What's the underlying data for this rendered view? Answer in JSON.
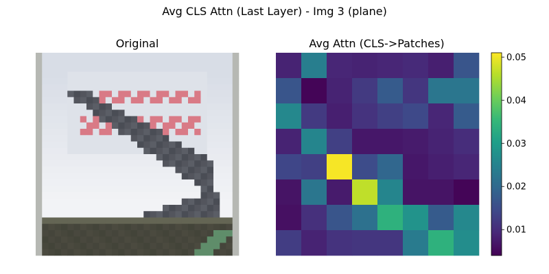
{
  "figure": {
    "suptitle": "Avg CLS Attn (Last Layer) - Img 3 (plane)"
  },
  "chart_data": [
    {
      "type": "image",
      "title": "Original",
      "axis": "off",
      "description_of_content": "low-resolution 32x32 photo: airplane on a sign/billboard with red lettering",
      "colors": {
        "sky": "#d8dde6",
        "sign_text": "#d97a86",
        "plane": "#4a4d55",
        "ground": "#4b4a3f",
        "frame": "#b6b8b3"
      }
    },
    {
      "type": "heatmap",
      "title": "Avg Attn (CLS->Patches)",
      "axis": "off",
      "colormap": "viridis",
      "rows": 8,
      "cols": 8,
      "values": [
        [
          0.0085,
          0.024,
          0.009,
          0.0085,
          0.009,
          0.0095,
          0.008,
          0.0165
        ],
        [
          0.0165,
          0.0045,
          0.0085,
          0.012,
          0.0175,
          0.0115,
          0.0225,
          0.0225
        ],
        [
          0.026,
          0.012,
          0.008,
          0.011,
          0.013,
          0.0145,
          0.009,
          0.0175
        ],
        [
          0.0085,
          0.0255,
          0.013,
          0.007,
          0.007,
          0.0075,
          0.0085,
          0.01
        ],
        [
          0.014,
          0.013,
          0.0505,
          0.015,
          0.0195,
          0.007,
          0.008,
          0.009
        ],
        [
          0.0065,
          0.0225,
          0.0075,
          0.0465,
          0.0255,
          0.0065,
          0.0065,
          0.0045
        ],
        [
          0.006,
          0.0105,
          0.0165,
          0.0215,
          0.034,
          0.028,
          0.0175,
          0.026
        ],
        [
          0.0125,
          0.0085,
          0.011,
          0.0115,
          0.0115,
          0.0235,
          0.034,
          0.027
        ]
      ],
      "colorbar": {
        "vmin": 0.004,
        "vmax": 0.051,
        "ticks": [
          0.01,
          0.02,
          0.03,
          0.04,
          0.05
        ],
        "tick_labels": [
          "0.01",
          "0.02",
          "0.03",
          "0.04",
          "0.05"
        ]
      }
    }
  ]
}
